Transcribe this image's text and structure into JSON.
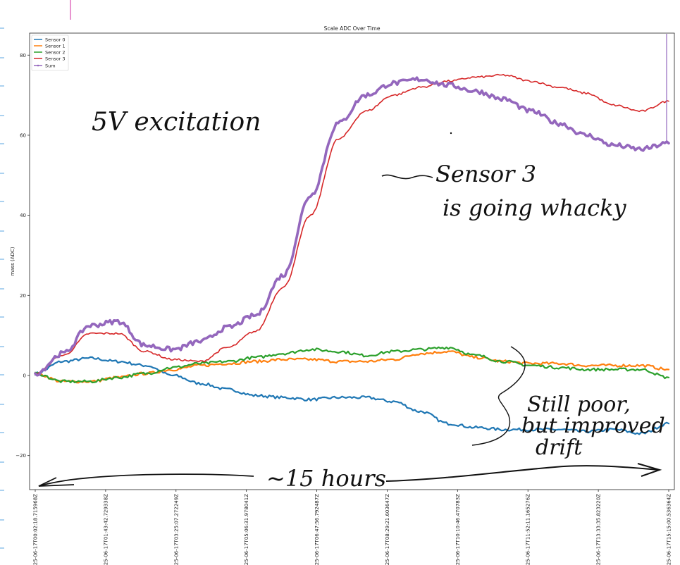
{
  "chart_data": {
    "type": "line",
    "title": "Scale ADC Over Time",
    "xlabel": "",
    "ylabel": "mass (ADC)",
    "ylim": [
      -28.5,
      85.5
    ],
    "yticks": [
      -20,
      0,
      20,
      40,
      60,
      80
    ],
    "grid": false,
    "legend_position": "top-left",
    "x_ticks": [
      "2025-06-17T00:02:18.715968Z",
      "2025-06-17T01:43:42.729338Z",
      "2025-06-17T03:25:07.272249Z",
      "2025-06-17T05:06:31.978041Z",
      "2025-06-17T06:47:56.792487Z",
      "2025-06-17T08:29:21.603647Z",
      "2025-06-17T10:10:46.470783Z",
      "2025-06-17T11:52:11.165276Z",
      "2025-06-17T13:33:35.823220Z",
      "2025-06-17T15:15:00.536364Z"
    ],
    "x": [
      "00:02",
      "00:45",
      "01:31",
      "02:17",
      "03:02",
      "03:48",
      "04:33",
      "05:19",
      "06:05",
      "06:40",
      "07:14",
      "07:54",
      "08:31",
      "09:05",
      "09:36",
      "10:05",
      "10:40",
      "11:23",
      "12:04",
      "12:46",
      "13:24",
      "14:00",
      "14:34",
      "15:15"
    ],
    "series": [
      {
        "name": "Sensor 0",
        "color": "#1f77b4",
        "values": [
          0.5,
          3.5,
          4.3,
          3.5,
          2.5,
          0.0,
          -2.0,
          -3.5,
          -5.0,
          -5.5,
          -6.0,
          -5.5,
          -5.5,
          -6.5,
          -9.0,
          -12.0,
          -13.0,
          -13.5,
          -13.5,
          -13.5,
          -14.0,
          -13.5,
          -14.5,
          -12.0
        ]
      },
      {
        "name": "Sensor 1",
        "color": "#ff7f0e",
        "values": [
          0.5,
          -1.5,
          -1.5,
          -0.5,
          0.5,
          1.5,
          2.5,
          3.0,
          3.5,
          4.0,
          4.0,
          3.5,
          3.5,
          4.0,
          5.5,
          6.0,
          4.5,
          3.5,
          3.0,
          3.0,
          2.5,
          2.5,
          2.5,
          1.5
        ]
      },
      {
        "name": "Sensor 2",
        "color": "#2ca02c",
        "values": [
          0.5,
          -1.5,
          -1.5,
          -0.5,
          0.5,
          2.0,
          3.0,
          3.5,
          4.5,
          5.5,
          6.5,
          6.0,
          5.0,
          6.0,
          6.5,
          7.0,
          5.0,
          3.5,
          2.5,
          2.0,
          1.5,
          1.5,
          1.5,
          -0.5
        ]
      },
      {
        "name": "Sensor 3",
        "color": "#d62728",
        "values": [
          0.5,
          5.0,
          10.5,
          10.5,
          6.0,
          4.0,
          3.5,
          7.0,
          11.0,
          22.0,
          40.0,
          59.0,
          66.0,
          70.0,
          72.0,
          73.5,
          74.5,
          75.0,
          73.5,
          72.0,
          70.5,
          67.5,
          66.0,
          68.5
        ]
      },
      {
        "name": "Sum",
        "color": "#9467bd",
        "values": [
          0.5,
          5.5,
          12.5,
          13.5,
          7.5,
          6.5,
          8.5,
          12.0,
          15.0,
          25.0,
          45.0,
          63.0,
          70.0,
          73.0,
          74.0,
          72.5,
          71.0,
          69.0,
          66.0,
          63.0,
          60.0,
          57.5,
          56.5,
          58.0
        ]
      }
    ],
    "annotations": [
      {
        "id": "excitation",
        "text": "5V excitation"
      },
      {
        "id": "sensor3_line1",
        "text": "Sensor 3"
      },
      {
        "id": "sensor3_line2",
        "text": "is going whacky"
      },
      {
        "id": "drift_line1",
        "text": "Still poor,"
      },
      {
        "id": "drift_line2",
        "text": "but improved"
      },
      {
        "id": "drift_line3",
        "text": "drift"
      },
      {
        "id": "duration",
        "text": "~15 hours"
      }
    ]
  }
}
